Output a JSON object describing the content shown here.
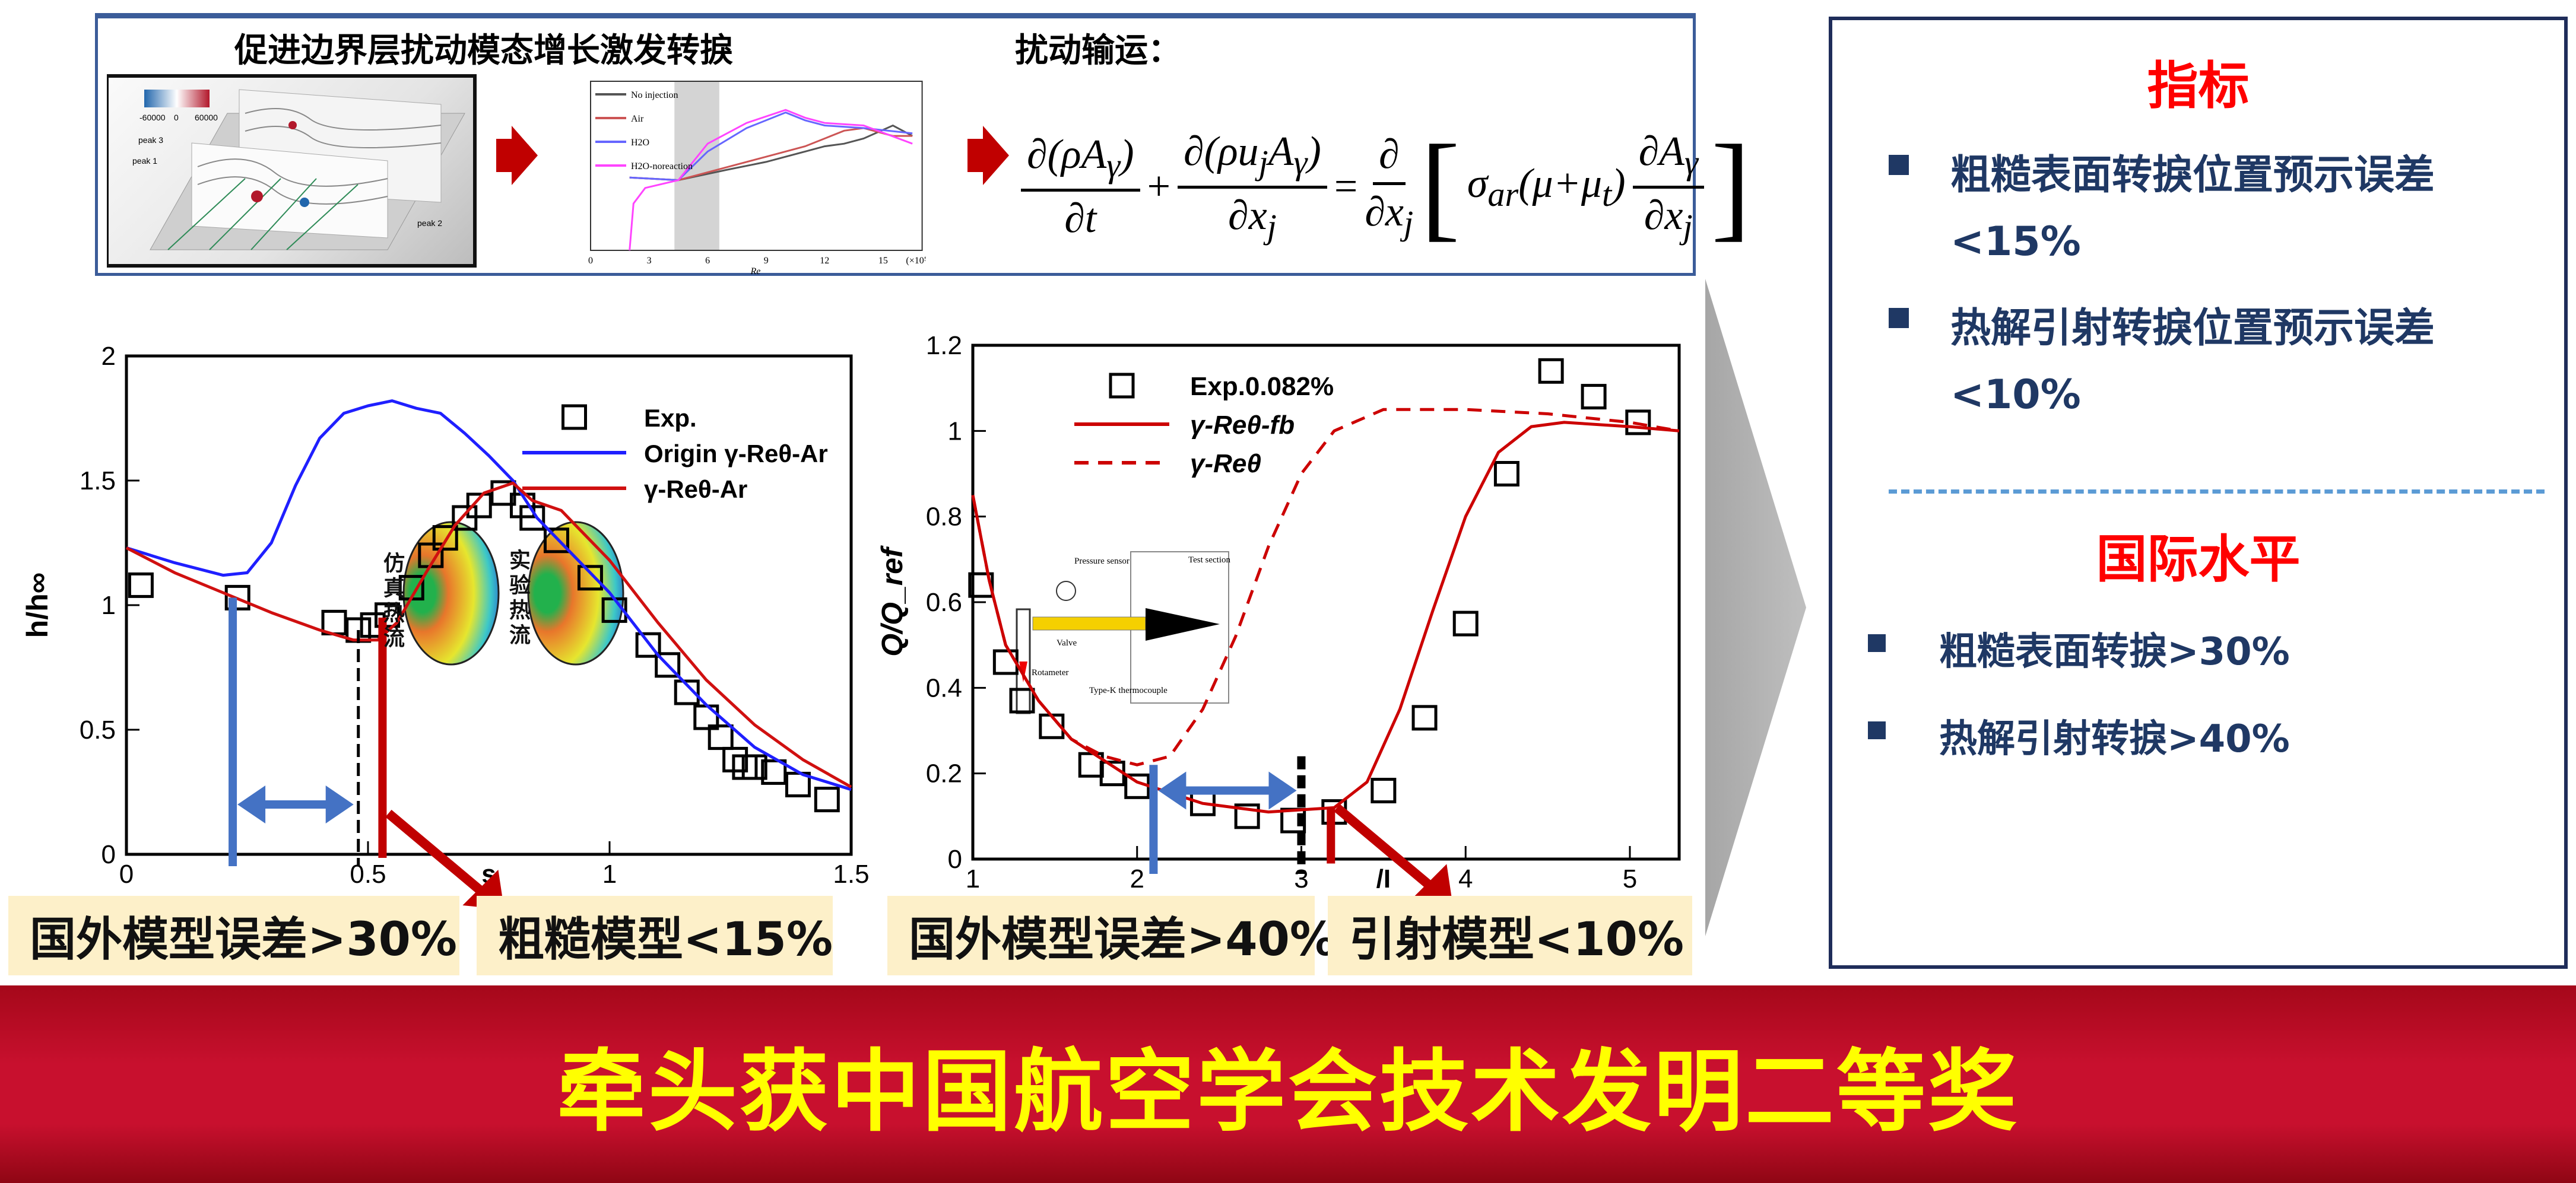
{
  "top": {
    "left_title": "促进边界层扰动模态增长激发转捩",
    "right_title": "扰动输运：",
    "equation": {
      "t1_num": "∂(ρA",
      "t1_sub": "γ",
      "t1_num_end": ")",
      "t1_den": "∂t",
      "plus": "+",
      "t2_num": "∂(ρu",
      "t2_sub_j": "j",
      "t2_num_mid": "A",
      "t2_sub": "γ",
      "t2_num_end": ")",
      "t2_den": "∂x",
      "t2_den_sub": "j",
      "equals": "=",
      "t3_num": "∂",
      "t3_den": "∂x",
      "t3_den_sub": "j",
      "sigma": "σ",
      "sigma_sub": "ar",
      "mu": "(μ+μ",
      "mu_sub": "t",
      "mu_end": ")",
      "t4_num": "∂A",
      "t4_sub": "γ",
      "t4_den": "∂x",
      "t4_den_sub": "j"
    },
    "inset3d": {
      "labels": [
        "peak 3",
        "peak 1",
        "peak 2"
      ],
      "colorbar_ticks": [
        "-60000",
        "0",
        "60000"
      ]
    }
  },
  "chart_data": [
    {
      "type": "line",
      "ylabel": "h/h∞",
      "xlabel": "s",
      "xlim": [
        0,
        1.5
      ],
      "ylim": [
        0,
        2
      ],
      "xticks": [
        "0",
        "0.5",
        "1",
        "1.5"
      ],
      "yticks": [
        "0",
        "0.5",
        "1",
        "1.5",
        "2"
      ],
      "legend_position": "top-right",
      "series": [
        {
          "name": "Exp.",
          "kind": "scatter",
          "color": "#000000",
          "x": [
            0.03,
            0.23,
            0.43,
            0.48,
            0.51,
            0.54,
            0.59,
            0.63,
            0.66,
            0.7,
            0.73,
            0.78,
            0.82,
            0.84,
            0.89,
            0.96,
            1.01,
            1.08,
            1.12,
            1.16,
            1.2,
            1.23,
            1.26,
            1.28,
            1.3,
            1.34,
            1.39,
            1.45
          ],
          "y": [
            1.08,
            1.03,
            0.93,
            0.9,
            0.92,
            0.96,
            1.07,
            1.2,
            1.27,
            1.35,
            1.4,
            1.45,
            1.4,
            1.35,
            1.26,
            1.11,
            0.98,
            0.84,
            0.76,
            0.65,
            0.55,
            0.47,
            0.38,
            0.35,
            0.35,
            0.33,
            0.28,
            0.22
          ]
        },
        {
          "name": "Origin γ-Reθ-Ar",
          "kind": "line",
          "color": "#1f1fff",
          "x": [
            0,
            0.1,
            0.2,
            0.25,
            0.3,
            0.35,
            0.4,
            0.45,
            0.5,
            0.55,
            0.6,
            0.65,
            0.7,
            0.75,
            0.8,
            0.85,
            0.9,
            1.0,
            1.1,
            1.2,
            1.3,
            1.4,
            1.5
          ],
          "y": [
            1.23,
            1.17,
            1.12,
            1.13,
            1.25,
            1.48,
            1.67,
            1.77,
            1.8,
            1.82,
            1.79,
            1.77,
            1.69,
            1.6,
            1.5,
            1.35,
            1.25,
            1.05,
            0.8,
            0.6,
            0.43,
            0.32,
            0.26
          ]
        },
        {
          "name": "γ-Reθ-Ar",
          "kind": "line",
          "color": "#d01010",
          "x": [
            0,
            0.1,
            0.2,
            0.3,
            0.4,
            0.47,
            0.52,
            0.56,
            0.62,
            0.68,
            0.74,
            0.8,
            0.84,
            0.9,
            1.0,
            1.1,
            1.2,
            1.3,
            1.4,
            1.5
          ],
          "y": [
            1.23,
            1.13,
            1.05,
            0.97,
            0.9,
            0.86,
            0.86,
            0.93,
            1.13,
            1.32,
            1.45,
            1.49,
            1.42,
            1.38,
            1.18,
            0.93,
            0.7,
            0.52,
            0.38,
            0.27
          ]
        }
      ],
      "annotations": {
        "blue_marker_x": 0.22,
        "blue_marker_top": 1.03,
        "dashed_marker_x": 0.48,
        "red_marker_x": 0.53,
        "red_marker_top": 0.95
      },
      "inset": {
        "sim_label": "仿真热流",
        "exp_label": "实验热流"
      },
      "callouts": [
        "国外模型误差>30%",
        "粗糙模型<15%"
      ]
    },
    {
      "type": "line",
      "ylabel": "Q/Q_ref",
      "xlabel": "/I",
      "xlim": [
        1,
        5.3
      ],
      "ylim": [
        0,
        1.2
      ],
      "xticks": [
        "1",
        "2",
        "3",
        "4",
        "5"
      ],
      "yticks": [
        "0",
        "0.2",
        "0.4",
        "0.6",
        "0.8",
        "1",
        "1.2"
      ],
      "legend_position": "top-left",
      "series": [
        {
          "name": "Exp.0.082%",
          "kind": "scatter",
          "color": "#000000",
          "x": [
            1.05,
            1.2,
            1.3,
            1.48,
            1.72,
            1.85,
            2.0,
            2.4,
            2.67,
            2.95,
            3.2,
            3.5,
            3.75,
            4.0,
            4.25,
            4.52,
            4.78,
            5.05
          ],
          "y": [
            0.64,
            0.46,
            0.37,
            0.31,
            0.22,
            0.2,
            0.17,
            0.13,
            0.1,
            0.09,
            0.11,
            0.16,
            0.33,
            0.55,
            0.9,
            1.14,
            1.08,
            1.02
          ]
        },
        {
          "name": "γ-Reθ-fb",
          "kind": "line",
          "color": "#cc0000",
          "x": [
            1,
            1.1,
            1.2,
            1.4,
            1.6,
            2.0,
            2.4,
            2.8,
            3.2,
            3.4,
            3.6,
            3.8,
            4.0,
            4.2,
            4.4,
            4.6,
            5.0,
            5.3
          ],
          "y": [
            0.85,
            0.65,
            0.5,
            0.37,
            0.28,
            0.18,
            0.13,
            0.11,
            0.12,
            0.18,
            0.35,
            0.58,
            0.8,
            0.95,
            1.01,
            1.02,
            1.01,
            1.0
          ]
        },
        {
          "name": "γ-Reθ",
          "kind": "dashed",
          "color": "#cc0000",
          "x": [
            1,
            1.1,
            1.2,
            1.4,
            1.6,
            1.8,
            2.0,
            2.2,
            2.4,
            2.6,
            2.8,
            3.0,
            3.2,
            3.5,
            4.0,
            4.5,
            5.0,
            5.3
          ],
          "y": [
            0.85,
            0.65,
            0.5,
            0.37,
            0.28,
            0.24,
            0.22,
            0.24,
            0.35,
            0.52,
            0.73,
            0.9,
            1.0,
            1.05,
            1.05,
            1.04,
            1.02,
            1.0
          ]
        }
      ],
      "annotations": {
        "blue_marker_x": 2.1,
        "dashed_marker_x": 3.0,
        "red_marker_x": 3.18,
        "red_marker_top": 0.12
      },
      "inset": {
        "labels": [
          "Pressure sensor",
          "Test section",
          "Valve",
          "Rotameter",
          "Type-K thermocouple"
        ]
      },
      "callouts": [
        "国外模型误差>40%",
        "引射模型<10%"
      ]
    },
    {
      "type": "line",
      "xlabel": "Re",
      "xticks": [
        "0",
        "3",
        "6",
        "9",
        "12",
        "15",
        "(×10⁵)"
      ],
      "ylog": true,
      "shaded_band": [
        4.3,
        6.6
      ],
      "legend_position": "top-left",
      "series": [
        {
          "name": "No injection",
          "color": "#555555",
          "x": [
            2,
            4.5,
            7,
            9,
            11,
            12,
            13,
            14,
            15.5,
            16.5
          ],
          "y": [
            -1.2,
            -1.3,
            -0.9,
            -0.6,
            -0.2,
            0.0,
            0.1,
            0.3,
            0.8,
            0.4
          ]
        },
        {
          "name": "Air",
          "color": "#cc5555",
          "x": [
            2,
            4.5,
            7,
            9,
            11,
            12,
            13,
            14,
            15.5,
            16.5
          ],
          "y": [
            -1.2,
            -1.3,
            -0.8,
            -0.4,
            0.0,
            0.3,
            0.6,
            0.7,
            0.4,
            0.4
          ]
        },
        {
          "name": "H2O",
          "color": "#6666ff",
          "x": [
            2,
            4.5,
            6,
            8,
            10,
            11,
            12,
            14,
            16.5
          ],
          "y": [
            -1.2,
            -1.3,
            -0.2,
            0.7,
            1.3,
            1.0,
            0.8,
            0.7,
            0.5
          ]
        },
        {
          "name": "H2O-noreaction",
          "color": "#ff44ff",
          "x": [
            2,
            2.2,
            2.8,
            4.5,
            6,
            8,
            10,
            11,
            12,
            14,
            16.5
          ],
          "y": [
            -4,
            -2.2,
            -1.6,
            -1.3,
            0.1,
            0.9,
            1.4,
            1.1,
            0.9,
            0.8,
            0.1
          ]
        }
      ]
    }
  ],
  "right_panel": {
    "title1": "指标",
    "items1": [
      {
        "line1": "粗糙表面转捩位置预示误差",
        "line2": "<15%"
      },
      {
        "line1": "热解引射转捩位置预示误差",
        "line2": "<10%"
      }
    ],
    "title2": "国际水平",
    "items2": [
      "粗糙表面转捩>30%",
      "热解引射转捩>40%"
    ]
  },
  "banner": {
    "text": "牵头获中国航空学会技术发明二等奖"
  },
  "colors": {
    "navy": "#1f3864",
    "red_title": "#ff0000",
    "banner_red": "#c8102e",
    "banner_text": "#ffff00",
    "callout_bg": "#fdf0c9",
    "marker_blue": "#4472c4"
  }
}
